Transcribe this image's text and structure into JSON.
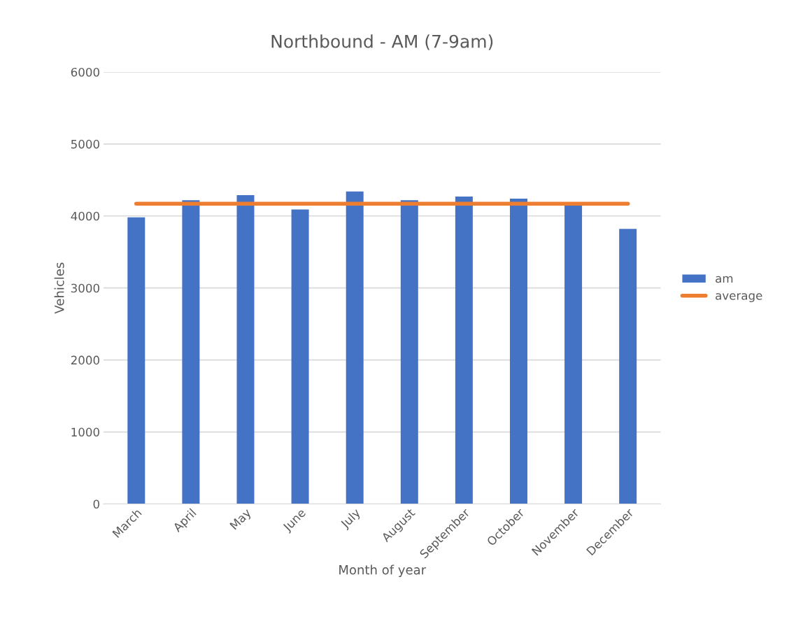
{
  "chart_data": {
    "type": "bar",
    "title": "Northbound - AM (7-9am)",
    "xlabel": "Month of year",
    "ylabel": "Vehicles",
    "categories": [
      "March",
      "April",
      "May",
      "June",
      "July",
      "August",
      "September",
      "October",
      "November",
      "December"
    ],
    "series": [
      {
        "name": "am",
        "color": "#4472c4",
        "values": [
          3980,
          4220,
          4290,
          4090,
          4340,
          4220,
          4270,
          4240,
          4160,
          3820
        ]
      },
      {
        "name": "average",
        "type": "line",
        "color": "#ed7d31",
        "values": [
          4170,
          4170,
          4170,
          4170,
          4170,
          4170,
          4170,
          4170,
          4170,
          4170
        ]
      }
    ],
    "ylim": [
      0,
      6000
    ],
    "yticks": [
      0,
      1000,
      2000,
      3000,
      4000,
      5000,
      6000
    ],
    "grid": "y",
    "legend": "right"
  }
}
